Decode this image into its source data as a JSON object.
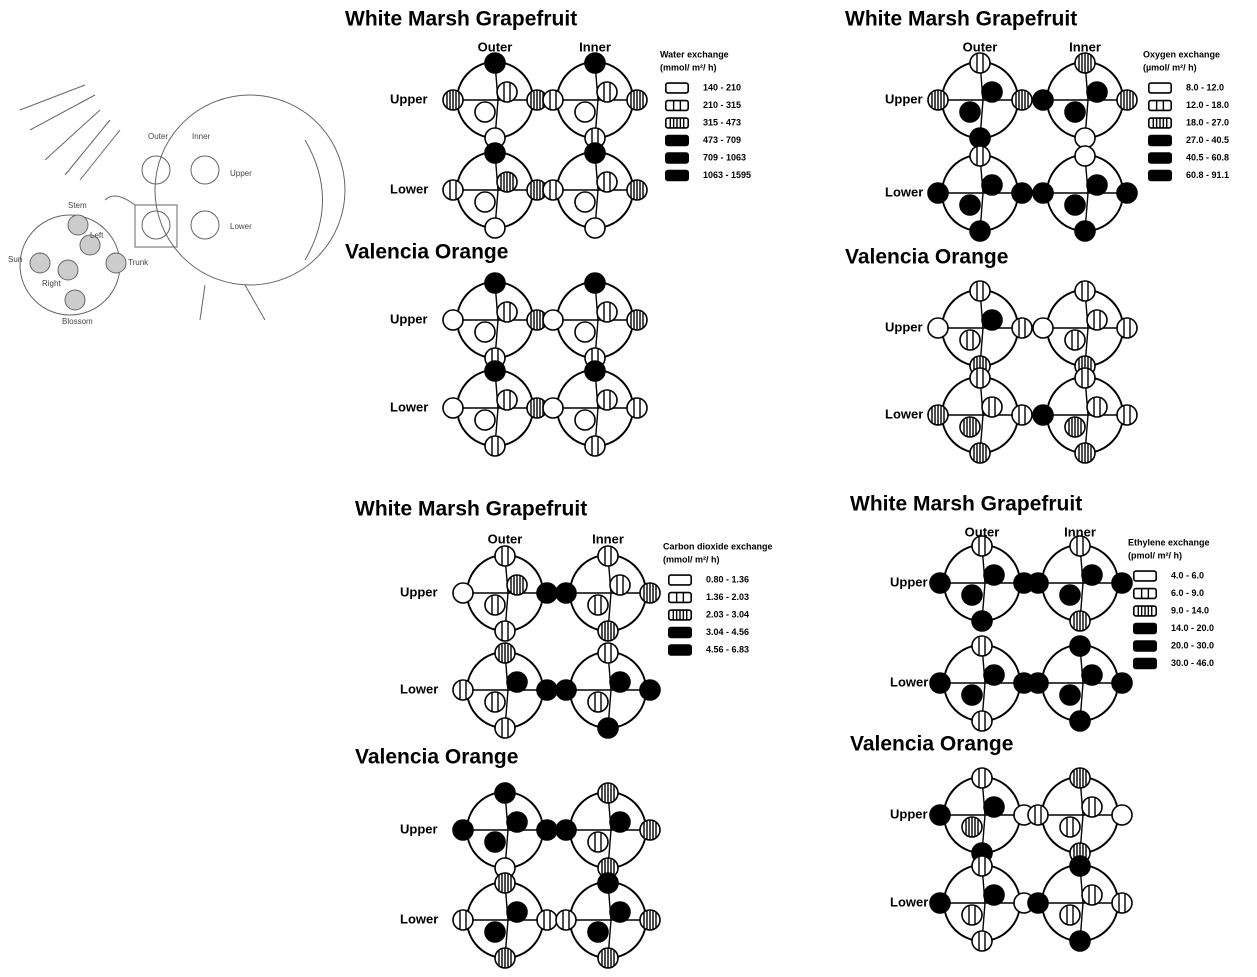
{
  "schematic": {
    "columns": [
      "Outer",
      "Inner"
    ],
    "rows": [
      "Upper",
      "Lower"
    ],
    "positions": [
      "Stem",
      "Left",
      "Sun",
      "Right",
      "Trunk",
      "Blossom"
    ]
  },
  "panels": [
    {
      "columns": [
        "Outer",
        "Inner"
      ],
      "legend": {
        "title": "Water exchange",
        "unit": "(mmol/ m²/ h)",
        "ranges": [
          "140 - 210",
          "210 - 315",
          "315 - 473",
          "473 - 709",
          "709 - 1063",
          "1063 - 1595"
        ]
      },
      "cultivars": [
        {
          "name": "White Marsh Grapefruit",
          "rows": [
            "Upper",
            "Lower"
          ],
          "glyphs": [
            [
              4,
              2,
              2,
              0,
              1,
              0
            ],
            [
              4,
              1,
              2,
              1,
              1,
              0
            ],
            [
              4,
              1,
              2,
              0,
              2,
              0
            ],
            [
              4,
              1,
              2,
              0,
              1,
              0
            ]
          ]
        },
        {
          "name": "Valencia Orange",
          "rows": [
            "Upper",
            "Lower"
          ],
          "glyphs": [
            [
              4,
              0,
              2,
              1,
              1,
              0
            ],
            [
              4,
              0,
              2,
              1,
              1,
              0
            ],
            [
              4,
              0,
              2,
              1,
              1,
              0
            ],
            [
              4,
              0,
              1,
              1,
              1,
              0
            ]
          ]
        }
      ]
    },
    {
      "columns": [
        "Outer",
        "Inner"
      ],
      "legend": {
        "title": "Oxygen exchange",
        "unit": "(µmol/ m²/ h)",
        "ranges": [
          "8.0 - 12.0",
          "12.0 - 18.0",
          "18.0 - 27.0",
          "27.0 - 40.5",
          "40.5 - 60.8",
          "60.8 - 91.1"
        ]
      },
      "cultivars": [
        {
          "name": "White Marsh Grapefruit",
          "rows": [
            "Upper",
            "Lower"
          ],
          "glyphs": [
            [
              1,
              2,
              2,
              4,
              4,
              3
            ],
            [
              2,
              4,
              2,
              0,
              4,
              4
            ],
            [
              1,
              4,
              4,
              4,
              4,
              3
            ],
            [
              0,
              4,
              4,
              4,
              4,
              4
            ]
          ]
        },
        {
          "name": "Valencia Orange",
          "rows": [
            "Upper",
            "Lower"
          ],
          "glyphs": [
            [
              1,
              0,
              1,
              2,
              4,
              1
            ],
            [
              1,
              0,
              1,
              2,
              1,
              1
            ],
            [
              1,
              2,
              1,
              2,
              1,
              2
            ],
            [
              1,
              4,
              1,
              2,
              1,
              2
            ]
          ]
        }
      ]
    },
    {
      "columns": [
        "Outer",
        "Inner"
      ],
      "legend": {
        "title": "Carbon dioxide exchange",
        "unit": "(mmol/ m²/ h)",
        "ranges": [
          "0.80 - 1.36",
          "1.36 - 2.03",
          "2.03 - 3.04",
          "3.04 - 4.56",
          "4.56 - 6.83"
        ]
      },
      "cultivars": [
        {
          "name": "White Marsh Grapefruit",
          "rows": [
            "Upper",
            "Lower"
          ],
          "glyphs": [
            [
              1,
              0,
              4,
              1,
              2,
              1
            ],
            [
              1,
              4,
              2,
              2,
              1,
              1
            ],
            [
              2,
              1,
              4,
              1,
              4,
              1
            ],
            [
              1,
              4,
              4,
              4,
              4,
              1
            ]
          ]
        },
        {
          "name": "Valencia Orange",
          "rows": [
            "Upper",
            "Lower"
          ],
          "glyphs": [
            [
              4,
              4,
              4,
              0,
              4,
              4
            ],
            [
              2,
              4,
              2,
              2,
              4,
              1
            ],
            [
              2,
              1,
              1,
              2,
              4,
              4
            ],
            [
              4,
              1,
              2,
              2,
              4,
              4
            ]
          ]
        }
      ]
    },
    {
      "columns": [
        "Outer",
        "Inner"
      ],
      "legend": {
        "title": "Ethylene exchange",
        "unit": "(pmol/ m²/ h)",
        "ranges": [
          "4.0 - 6.0",
          "6.0 - 9.0",
          "9.0 - 14.0",
          "14.0 - 20.0",
          "20.0 - 30.0",
          "30.0 - 46.0"
        ]
      },
      "cultivars": [
        {
          "name": "White Marsh Grapefruit",
          "rows": [
            "Upper",
            "Lower"
          ],
          "glyphs": [
            [
              1,
              4,
              4,
              4,
              4,
              3
            ],
            [
              1,
              4,
              4,
              2,
              4,
              4
            ],
            [
              1,
              4,
              4,
              1,
              4,
              4
            ],
            [
              4,
              4,
              4,
              4,
              4,
              4
            ]
          ]
        },
        {
          "name": "Valencia Orange",
          "rows": [
            "Upper",
            "Lower"
          ],
          "glyphs": [
            [
              1,
              4,
              0,
              4,
              4,
              2
            ],
            [
              2,
              1,
              0,
              2,
              1,
              1
            ],
            [
              1,
              4,
              0,
              1,
              4,
              1
            ],
            [
              4,
              4,
              1,
              4,
              1,
              1
            ]
          ]
        }
      ]
    }
  ]
}
